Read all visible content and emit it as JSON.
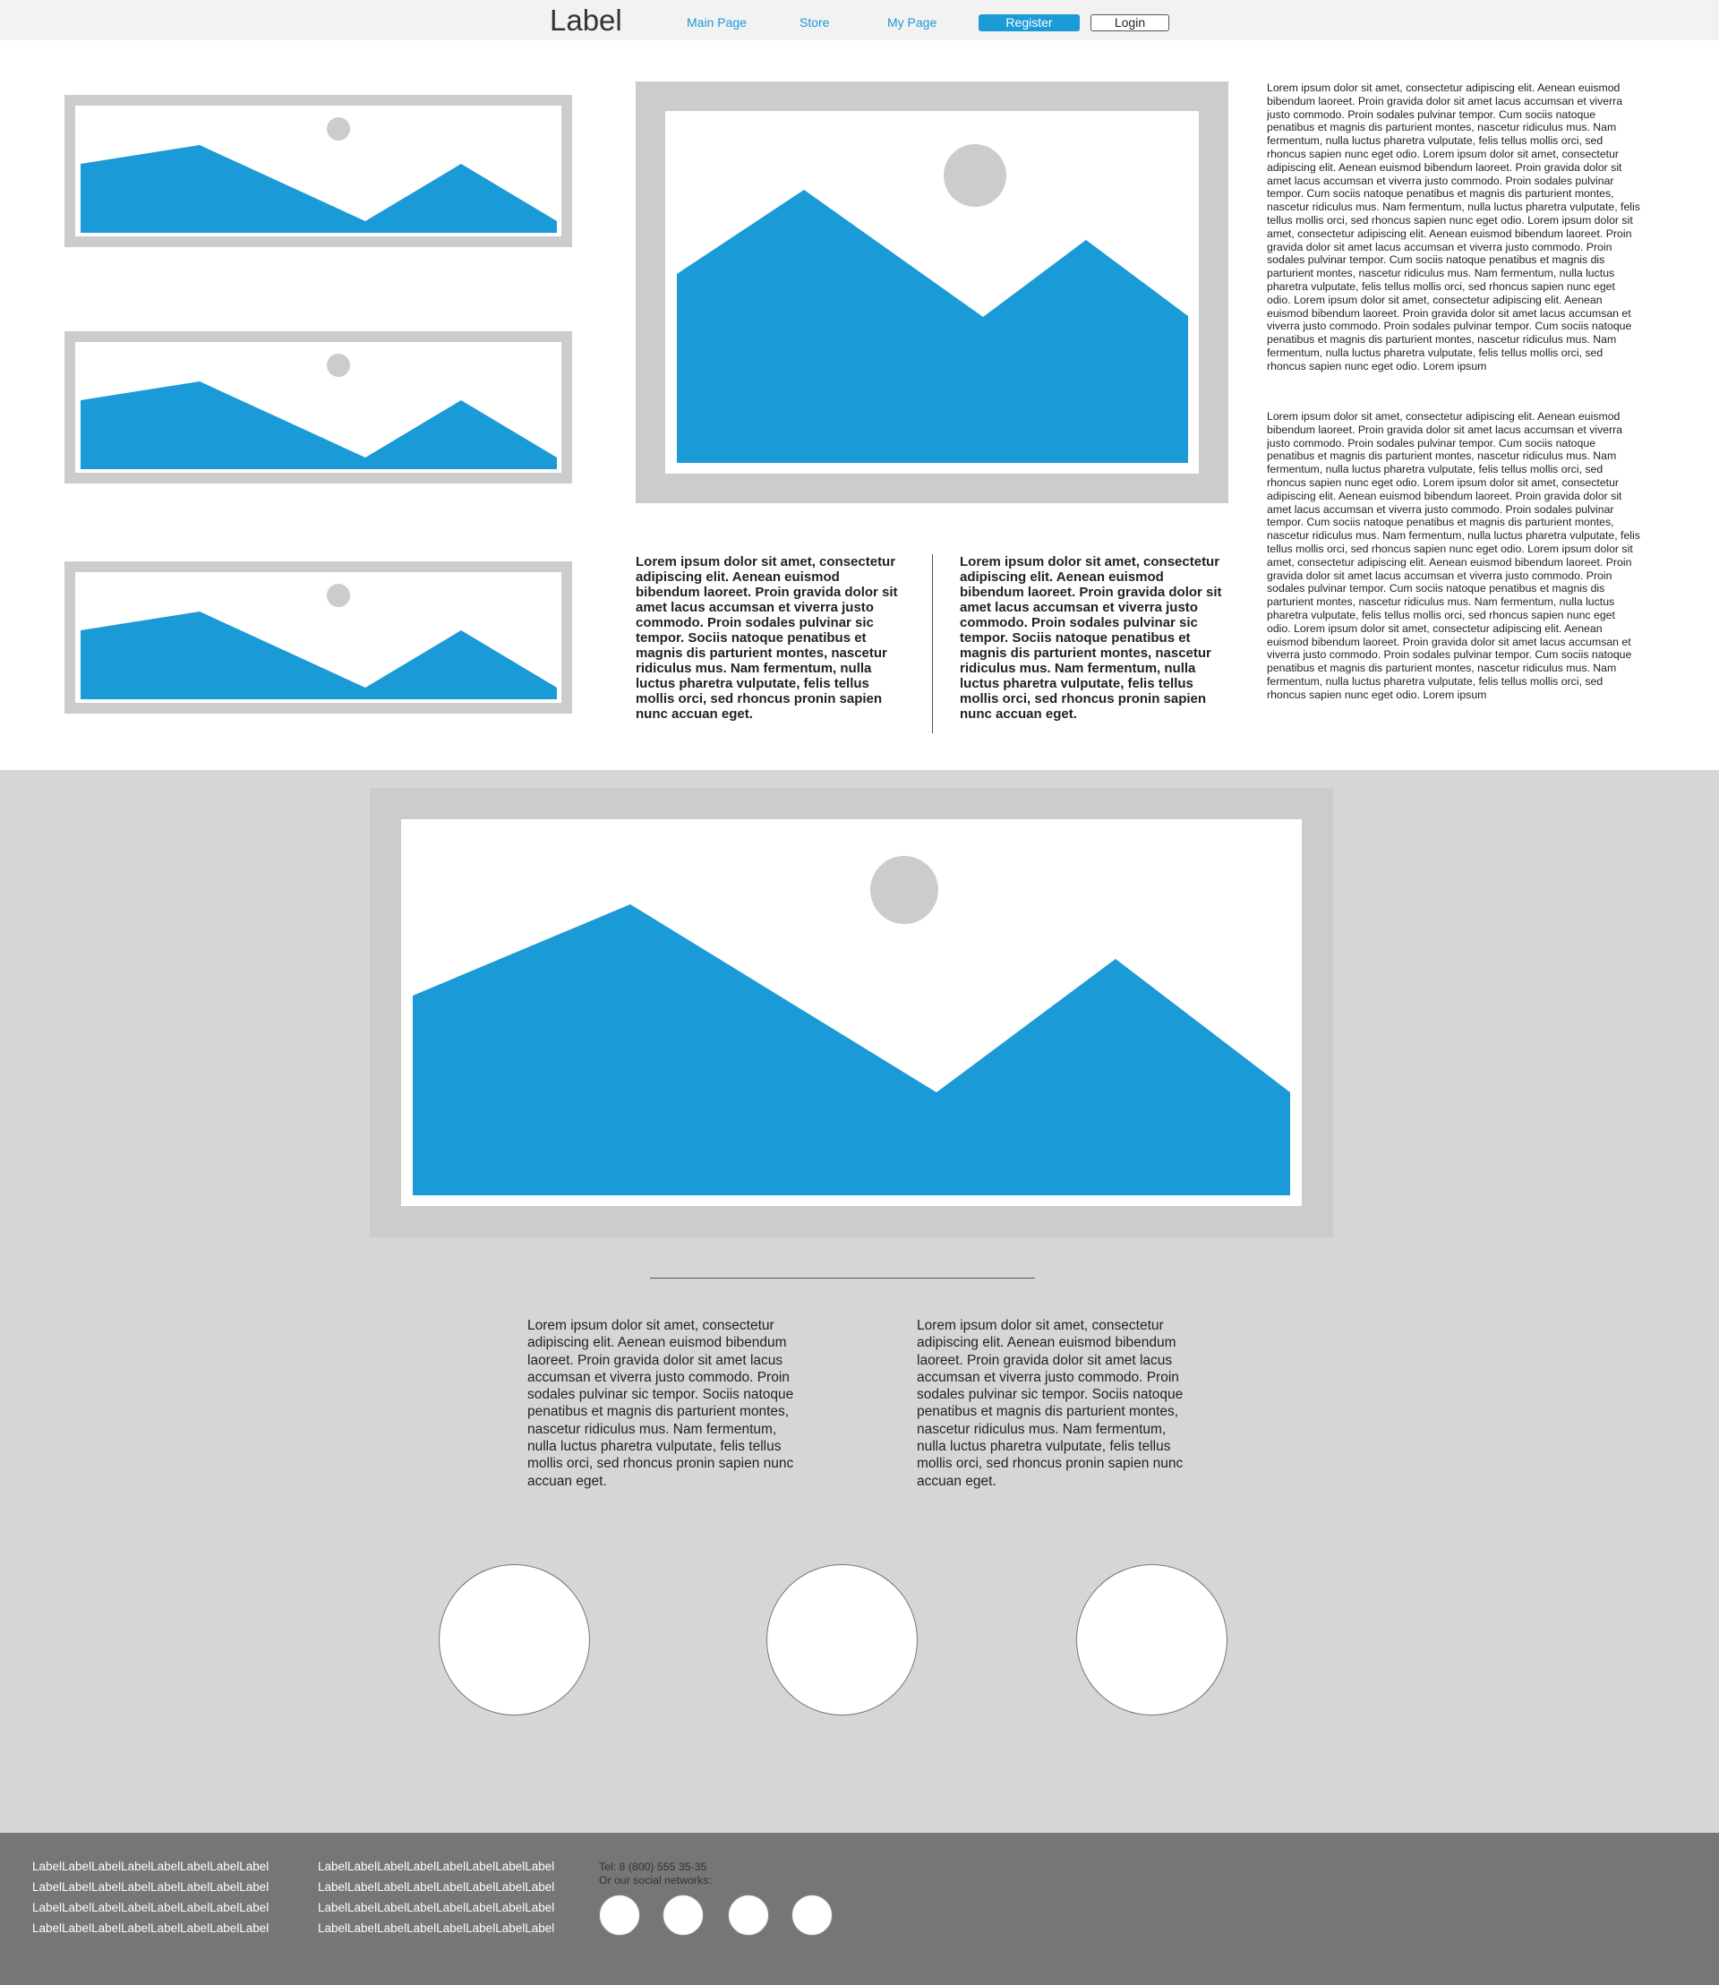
{
  "header": {
    "logo": "Label",
    "nav": [
      "Main Page",
      "Store",
      "My Page"
    ],
    "register_label": "Register",
    "login_label": "Login"
  },
  "colors": {
    "accent": "#1a9ad6",
    "frame": "#cccccc",
    "sun": "#cccccc",
    "section_bg": "#d6d6d6",
    "footer_bg": "#767676"
  },
  "icons": {
    "image_placeholder": "image-placeholder-icon",
    "social": "social-network-icon"
  },
  "main": {
    "featured_bold_text_1": "Lorem ipsum dolor sit amet, consectetur adipiscing elit. Aenean euismod bibendum laoreet. Proin gravida dolor sit amet lacus accumsan et viverra justo commodo. Proin sodales pulvinar sic tempor. Sociis natoque penatibus et magnis dis parturient montes, nascetur ridiculus mus. Nam fermentum, nulla luctus pharetra vulputate, felis tellus mollis orci, sed rhoncus pronin sapien nunc accuan eget.",
    "featured_bold_text_2": "Lorem ipsum dolor sit amet, consectetur adipiscing elit. Aenean euismod bibendum laoreet. Proin gravida dolor sit amet lacus accumsan et viverra justo commodo. Proin sodales pulvinar sic tempor. Sociis natoque penatibus et magnis dis parturient montes, nascetur ridiculus mus. Nam fermentum, nulla luctus pharetra vulputate, felis tellus mollis orci, sed rhoncus pronin sapien nunc accuan eget.",
    "side_text_1": "Lorem ipsum dolor sit amet, consectetur adipiscing elit. Aenean euismod bibendum laoreet. Proin gravida dolor sit amet lacus accumsan et viverra justo commodo. Proin sodales pulvinar tempor. Cum sociis natoque penatibus et magnis dis parturient montes, nascetur ridiculus mus. Nam fermentum, nulla luctus pharetra vulputate, felis tellus mollis orci, sed rhoncus sapien nunc eget odio. Lorem ipsum dolor sit amet, consectetur adipiscing elit. Aenean euismod bibendum laoreet. Proin gravida dolor sit amet lacus accumsan et viverra justo commodo. Proin sodales pulvinar tempor. Cum sociis natoque penatibus et magnis dis parturient montes, nascetur ridiculus mus. Nam fermentum, nulla luctus pharetra vulputate, felis tellus mollis orci, sed rhoncus sapien nunc eget odio. Lorem ipsum dolor sit amet, consectetur adipiscing elit. Aenean euismod bibendum laoreet. Proin gravida dolor sit amet lacus accumsan et viverra justo commodo. Proin sodales pulvinar tempor. Cum sociis natoque penatibus et magnis dis parturient montes, nascetur ridiculus mus. Nam fermentum, nulla luctus pharetra vulputate, felis tellus mollis orci, sed rhoncus sapien nunc eget odio. Lorem ipsum dolor sit amet, consectetur adipiscing elit. Aenean euismod bibendum laoreet. Proin gravida dolor sit amet lacus accumsan et viverra justo commodo. Proin sodales pulvinar tempor. Cum sociis natoque penatibus et magnis dis parturient montes, nascetur ridiculus mus. Nam fermentum, nulla luctus pharetra vulputate, felis tellus mollis orci, sed rhoncus sapien nunc eget odio. Lorem ipsum",
    "side_text_2": "Lorem ipsum dolor sit amet, consectetur adipiscing elit. Aenean euismod bibendum laoreet. Proin gravida dolor sit amet lacus accumsan et viverra justo commodo. Proin sodales pulvinar tempor. Cum sociis natoque penatibus et magnis dis parturient montes, nascetur ridiculus mus. Nam fermentum, nulla luctus pharetra vulputate, felis tellus mollis orci, sed rhoncus sapien nunc eget odio. Lorem ipsum dolor sit amet, consectetur adipiscing elit. Aenean euismod bibendum laoreet. Proin gravida dolor sit amet lacus accumsan et viverra justo commodo. Proin sodales pulvinar tempor. Cum sociis natoque penatibus et magnis dis parturient montes, nascetur ridiculus mus. Nam fermentum, nulla luctus pharetra vulputate, felis tellus mollis orci, sed rhoncus sapien nunc eget odio. Lorem ipsum dolor sit amet, consectetur adipiscing elit. Aenean euismod bibendum laoreet. Proin gravida dolor sit amet lacus accumsan et viverra justo commodo. Proin sodales pulvinar tempor. Cum sociis natoque penatibus et magnis dis parturient montes, nascetur ridiculus mus. Nam fermentum, nulla luctus pharetra vulputate, felis tellus mollis orci, sed rhoncus sapien nunc eget odio. Lorem ipsum dolor sit amet, consectetur adipiscing elit. Aenean euismod bibendum laoreet. Proin gravida dolor sit amet lacus accumsan et viverra justo commodo. Proin sodales pulvinar tempor. Cum sociis natoque penatibus et magnis dis parturient montes, nascetur ridiculus mus. Nam fermentum, nulla luctus pharetra vulputate, felis tellus mollis orci, sed rhoncus sapien nunc eget odio. Lorem ipsum"
  },
  "section2": {
    "text_1": "Lorem ipsum dolor sit amet, consectetur adipiscing elit. Aenean euismod bibendum laoreet. Proin gravida dolor sit amet lacus accumsan et viverra justo commodo. Proin sodales pulvinar sic tempor. Sociis natoque penatibus et magnis dis parturient montes, nascetur ridiculus mus. Nam fermentum, nulla luctus pharetra vulputate, felis tellus mollis orci, sed rhoncus pronin sapien nunc accuan eget.",
    "text_2": "Lorem ipsum dolor sit amet, consectetur adipiscing elit. Aenean euismod bibendum laoreet. Proin gravida dolor sit amet lacus accumsan et viverra justo commodo. Proin sodales pulvinar sic tempor. Sociis natoque penatibus et magnis dis parturient montes, nascetur ridiculus mus. Nam fermentum, nulla luctus pharetra vulputate, felis tellus mollis orci, sed rhoncus pronin sapien nunc accuan eget."
  },
  "footer": {
    "col1": [
      "LabelLabelLabelLabelLabelLabelLabelLabel",
      "LabelLabelLabelLabelLabelLabelLabelLabel",
      "LabelLabelLabelLabelLabelLabelLabelLabel",
      "LabelLabelLabelLabelLabelLabelLabelLabel"
    ],
    "col2": [
      "LabelLabelLabelLabelLabelLabelLabelLabel",
      "LabelLabelLabelLabelLabelLabelLabelLabel",
      "LabelLabelLabelLabelLabelLabelLabelLabel",
      "LabelLabelLabelLabelLabelLabelLabelLabel"
    ],
    "phone": "Tel: 8 (800) 555 35-35",
    "social_label": "Or our social networks:"
  }
}
